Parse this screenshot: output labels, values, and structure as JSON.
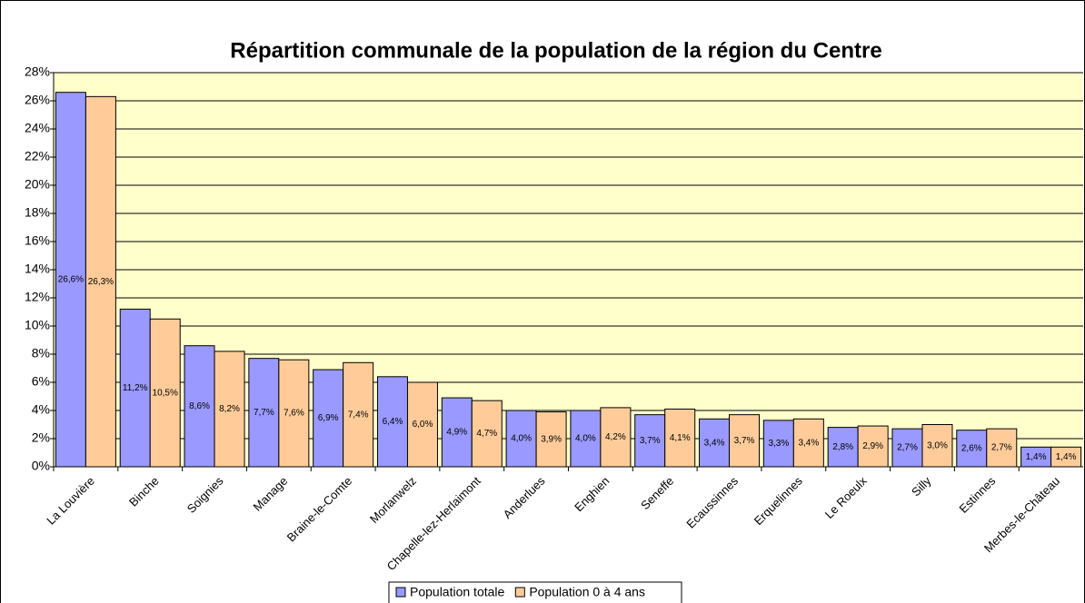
{
  "chart_data": {
    "type": "bar",
    "title": "Répartition communale de la population de la région du Centre",
    "categories": [
      "La Louvière",
      "Binche",
      "Soignies",
      "Manage",
      "Braine-le-Comte",
      "Morlanwelz",
      "Chapelle-lez-Herlaimont",
      "Anderlues",
      "Enghien",
      "Seneffe",
      "Ecaussinnes",
      "Erquelinnes",
      "Le Roeulx",
      "Silly",
      "Estinnes",
      "Merbes-le-Château"
    ],
    "series": [
      {
        "name": "Population totale",
        "color": "#9999ff",
        "values": [
          26.6,
          11.2,
          8.6,
          7.7,
          6.9,
          6.4,
          4.9,
          4.0,
          4.0,
          3.7,
          3.4,
          3.3,
          2.8,
          2.7,
          2.6,
          1.4
        ],
        "value_labels": [
          "26,6%",
          "11,2%",
          "8,6%",
          "7,7%",
          "6,9%",
          "6,4%",
          "4,9%",
          "4,0%",
          "4,0%",
          "3,7%",
          "3,4%",
          "3,3%",
          "2,8%",
          "2,7%",
          "2,6%",
          "1,4%"
        ]
      },
      {
        "name": "Population 0 à 4 ans",
        "color": "#ffcc99",
        "values": [
          26.3,
          10.5,
          8.2,
          7.6,
          7.4,
          6.0,
          4.7,
          3.9,
          4.2,
          4.1,
          3.7,
          3.4,
          2.9,
          3.0,
          2.7,
          1.4
        ],
        "value_labels": [
          "26,3%",
          "10,5%",
          "8,2%",
          "7,6%",
          "7,4%",
          "6,0%",
          "4,7%",
          "3,9%",
          "4,2%",
          "4,1%",
          "3,7%",
          "3,4%",
          "2,9%",
          "3,0%",
          "2,7%",
          "1,4%"
        ]
      }
    ],
    "ylim": [
      0,
      28
    ],
    "yticks": [
      {
        "value": 0,
        "label": "0%"
      },
      {
        "value": 2,
        "label": "2%"
      },
      {
        "value": 4,
        "label": "4%"
      },
      {
        "value": 6,
        "label": "6%"
      },
      {
        "value": 8,
        "label": "8%"
      },
      {
        "value": 10,
        "label": "10%"
      },
      {
        "value": 12,
        "label": "12%"
      },
      {
        "value": 14,
        "label": "14%"
      },
      {
        "value": 16,
        "label": "16%"
      },
      {
        "value": 18,
        "label": "18%"
      },
      {
        "value": 20,
        "label": "20%"
      },
      {
        "value": 22,
        "label": "22%"
      },
      {
        "value": 24,
        "label": "24%"
      },
      {
        "value": 26,
        "label": "26%"
      },
      {
        "value": 28,
        "label": "28%"
      }
    ],
    "grid": true,
    "plot_background": "#ffffcc",
    "legend": "bottom"
  }
}
